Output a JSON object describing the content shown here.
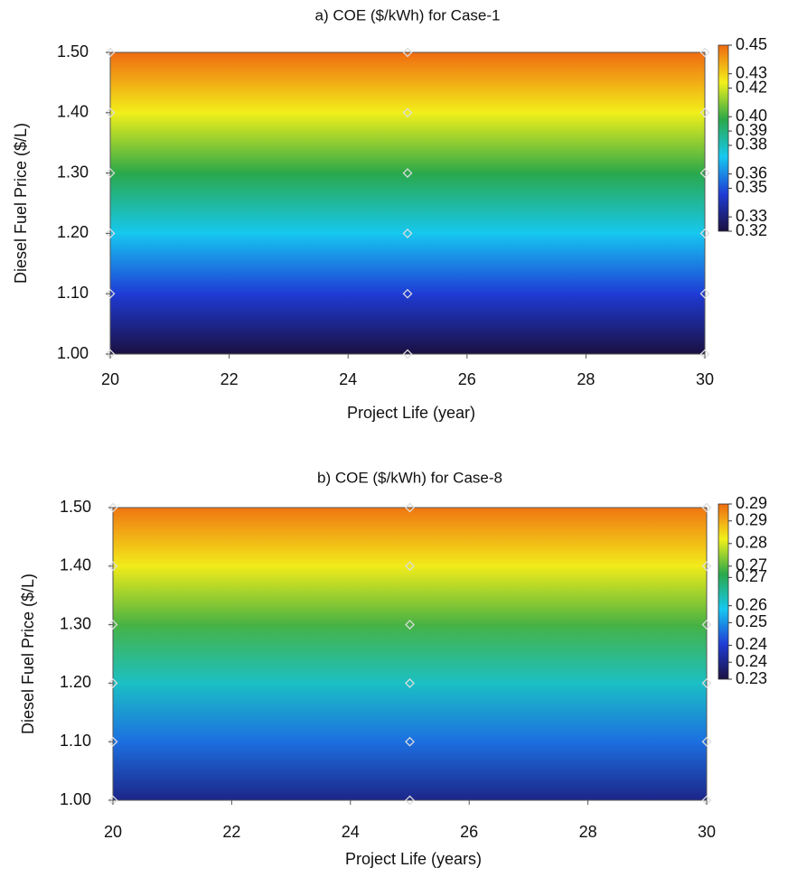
{
  "chart_data": [
    {
      "type": "heatmap",
      "title": "a) COE ($/kWh) for Case-1",
      "xlabel": "Project Life (year)",
      "ylabel": "Diesel Fuel Price ($/L)",
      "x": [
        20,
        25,
        30
      ],
      "y": [
        1.0,
        1.1,
        1.2,
        1.3,
        1.4,
        1.5
      ],
      "z": [
        [
          0.32,
          0.32,
          0.32
        ],
        [
          0.346,
          0.346,
          0.346
        ],
        [
          0.372,
          0.372,
          0.372
        ],
        [
          0.398,
          0.398,
          0.398
        ],
        [
          0.424,
          0.424,
          0.424
        ],
        [
          0.45,
          0.45,
          0.45
        ]
      ],
      "xlim": [
        20,
        30
      ],
      "xticks": [
        20,
        22,
        24,
        26,
        28,
        30
      ],
      "ylim": [
        1.0,
        1.5
      ],
      "yticks": [
        {
          "value": 1.0,
          "label": "1.00"
        },
        {
          "value": 1.1,
          "label": "1.10"
        },
        {
          "value": 1.2,
          "label": "1.20"
        },
        {
          "value": 1.3,
          "label": "1.30"
        },
        {
          "value": 1.4,
          "label": "1.40"
        },
        {
          "value": 1.5,
          "label": "1.50"
        }
      ],
      "clim": [
        0.32,
        0.45
      ],
      "cbar_ticks": [
        0.32,
        0.33,
        0.35,
        0.36,
        0.38,
        0.39,
        {
          "value": 0.4,
          "label": "0.40"
        },
        0.42,
        0.43,
        0.45
      ],
      "colormap": [
        "#1a1040",
        "#1f3bd6",
        "#16c8f0",
        "#2aa84a",
        "#f2f01a",
        "#f06a10"
      ]
    },
    {
      "type": "heatmap",
      "title": "b) COE ($/kWh) for Case-8",
      "xlabel": "Project Life (years)",
      "ylabel": "Diesel Fuel Price ($/L)",
      "x": [
        20,
        25,
        30
      ],
      "y": [
        1.0,
        1.1,
        1.2,
        1.3,
        1.4,
        1.5
      ],
      "z": [
        [
          0.236,
          0.236,
          0.236
        ],
        [
          0.247,
          0.247,
          0.247
        ],
        [
          0.258,
          0.258,
          0.258
        ],
        [
          0.269,
          0.269,
          0.269
        ],
        [
          0.28,
          0.28,
          0.28
        ],
        [
          0.291,
          0.291,
          0.291
        ]
      ],
      "xlim": [
        20,
        30
      ],
      "xticks": [
        20,
        22,
        24,
        26,
        28,
        30
      ],
      "ylim": [
        1.0,
        1.5
      ],
      "yticks": [
        {
          "value": 1.0,
          "label": "1.00"
        },
        {
          "value": 1.1,
          "label": "1.10"
        },
        {
          "value": 1.2,
          "label": "1.20"
        },
        {
          "value": 1.3,
          "label": "1.30"
        },
        {
          "value": 1.4,
          "label": "1.40"
        },
        {
          "value": 1.5,
          "label": "1.50"
        }
      ],
      "clim": [
        0.23,
        0.292
      ],
      "cbar_ticks": [
        0.23,
        0.236,
        0.242,
        0.25,
        0.256,
        0.266,
        0.27,
        0.278,
        0.286,
        0.292
      ],
      "cbar_labels": [
        "0.23",
        "0.24",
        "0.24",
        "0.25",
        "0.26",
        "0.27",
        "0.27",
        "0.28",
        "0.29",
        "0.29"
      ],
      "colormap": [
        "#1a1040",
        "#1f3bd6",
        "#16c8f0",
        "#2aa84a",
        "#f2f01a",
        "#f06a10"
      ]
    }
  ]
}
